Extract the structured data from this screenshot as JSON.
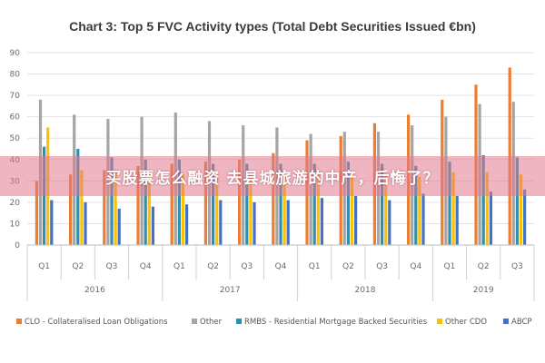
{
  "watermark": "买股票怎么融资 去县城旅游的中产，后悔了？",
  "chart_data": {
    "type": "bar",
    "title": "Chart 3: Top 5 FVC Activity types (Total Debt Securities Issued €bn)",
    "ylim": [
      0,
      90
    ],
    "yticks": [
      0,
      10,
      20,
      30,
      40,
      50,
      60,
      70,
      80,
      90
    ],
    "grid": true,
    "legend_position": "bottom",
    "categories": [
      "Q1",
      "Q2",
      "Q3",
      "Q4",
      "Q1",
      "Q2",
      "Q3",
      "Q4",
      "Q1",
      "Q2",
      "Q3",
      "Q4",
      "Q1",
      "Q2",
      "Q3"
    ],
    "year_groups": [
      {
        "label": "2016",
        "count": 4
      },
      {
        "label": "2017",
        "count": 4
      },
      {
        "label": "2018",
        "count": 4
      },
      {
        "label": "2019",
        "count": 3
      }
    ],
    "series": [
      {
        "name": "CLO - Collateralised Loan Obligations",
        "color": "#ed7d31",
        "values": [
          30,
          33,
          35,
          37,
          38,
          39,
          40,
          43,
          49,
          51,
          57,
          61,
          68,
          75,
          83
        ]
      },
      {
        "name": "Other",
        "color": "#a5a5a5",
        "values": [
          68,
          61,
          59,
          60,
          62,
          58,
          56,
          55,
          52,
          53,
          53,
          56,
          60,
          66,
          67
        ]
      },
      {
        "name": "RMBS - Residential Mortgage Backed Securities",
        "color": "#2e8fb0",
        "values": [
          46,
          45,
          41,
          40,
          40,
          38,
          38,
          38,
          38,
          39,
          38,
          37,
          39,
          42,
          41
        ]
      },
      {
        "name": "Other CDO",
        "color": "#ffc000",
        "values": [
          55,
          35,
          35,
          34,
          33,
          33,
          33,
          34,
          33,
          34,
          33,
          32,
          34,
          34,
          33
        ]
      },
      {
        "name": "ABCP",
        "color": "#4472c4",
        "values": [
          21,
          20,
          17,
          18,
          19,
          21,
          20,
          21,
          22,
          23,
          21,
          24,
          23,
          25,
          26
        ]
      }
    ]
  }
}
